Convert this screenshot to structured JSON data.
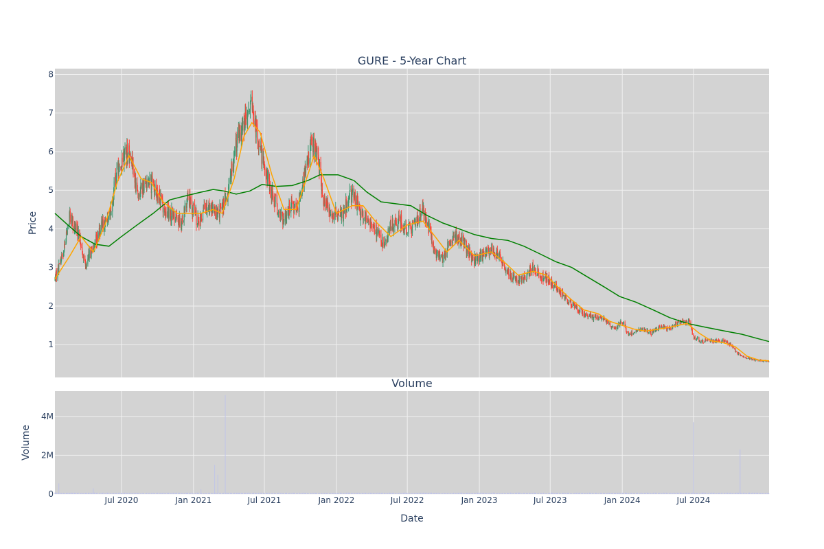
{
  "chart_data": {
    "type": "candlestick",
    "title": "GURE - 5-Year Chart",
    "volume_title": "Volume",
    "xlabel": "Date",
    "ylabel_price": "Price",
    "ylabel_volume": "Volume",
    "x_ticks": [
      "Jul 2020",
      "Jan 2021",
      "Jul 2021",
      "Jan 2022",
      "Jul 2022",
      "Jan 2023",
      "Jul 2023",
      "Jan 2024",
      "Jul 2024"
    ],
    "price_ticks": [
      "1",
      "2",
      "3",
      "4",
      "5",
      "6",
      "7",
      "8"
    ],
    "volume_ticks": [
      "0",
      "2M",
      "4M"
    ],
    "price_range": [
      0.15,
      8.15
    ],
    "volume_range": [
      0,
      5300000
    ],
    "date_range": [
      "2020-01-13",
      "2025-01-10"
    ],
    "price_keypoints": [
      [
        "2020-01-13",
        2.7
      ],
      [
        "2020-02-01",
        3.3
      ],
      [
        "2020-02-20",
        4.3
      ],
      [
        "2020-03-12",
        3.9
      ],
      [
        "2020-04-01",
        3.1
      ],
      [
        "2020-04-22",
        3.6
      ],
      [
        "2020-05-10",
        4.0
      ],
      [
        "2020-06-01",
        4.4
      ],
      [
        "2020-06-15",
        5.3
      ],
      [
        "2020-07-10",
        6.0
      ],
      [
        "2020-07-25",
        5.9
      ],
      [
        "2020-08-10",
        4.9
      ],
      [
        "2020-09-01",
        5.2
      ],
      [
        "2020-09-20",
        5.1
      ],
      [
        "2020-10-15",
        4.6
      ],
      [
        "2020-11-10",
        4.3
      ],
      [
        "2020-12-01",
        4.2
      ],
      [
        "2020-12-20",
        4.8
      ],
      [
        "2021-01-15",
        4.1
      ],
      [
        "2021-02-01",
        4.6
      ],
      [
        "2021-02-15",
        4.5
      ],
      [
        "2021-03-01",
        4.4
      ],
      [
        "2021-03-15",
        4.5
      ],
      [
        "2021-04-01",
        5.0
      ],
      [
        "2021-04-15",
        6.0
      ],
      [
        "2021-05-01",
        6.5
      ],
      [
        "2021-05-15",
        6.9
      ],
      [
        "2021-05-28",
        7.2
      ],
      [
        "2021-06-10",
        6.6
      ],
      [
        "2021-06-25",
        5.9
      ],
      [
        "2021-07-15",
        5.1
      ],
      [
        "2021-08-05",
        4.5
      ],
      [
        "2021-08-20",
        4.2
      ],
      [
        "2021-09-05",
        4.6
      ],
      [
        "2021-09-25",
        4.5
      ],
      [
        "2021-10-15",
        5.5
      ],
      [
        "2021-10-30",
        6.3
      ],
      [
        "2021-11-15",
        5.8
      ],
      [
        "2021-12-01",
        4.7
      ],
      [
        "2021-12-20",
        4.4
      ],
      [
        "2022-01-15",
        4.3
      ],
      [
        "2022-02-01",
        4.8
      ],
      [
        "2022-02-15",
        4.9
      ],
      [
        "2022-03-01",
        4.4
      ],
      [
        "2022-03-20",
        4.3
      ],
      [
        "2022-04-10",
        4.0
      ],
      [
        "2022-05-01",
        3.6
      ],
      [
        "2022-05-20",
        4.1
      ],
      [
        "2022-06-15",
        4.2
      ],
      [
        "2022-07-01",
        4.0
      ],
      [
        "2022-07-20",
        4.1
      ],
      [
        "2022-08-10",
        4.5
      ],
      [
        "2022-08-25",
        4.0
      ],
      [
        "2022-09-10",
        3.4
      ],
      [
        "2022-09-30",
        3.2
      ],
      [
        "2022-10-20",
        3.7
      ],
      [
        "2022-11-05",
        3.8
      ],
      [
        "2022-11-25",
        3.6
      ],
      [
        "2022-12-15",
        3.2
      ],
      [
        "2023-01-10",
        3.3
      ],
      [
        "2023-02-01",
        3.5
      ],
      [
        "2023-02-20",
        3.3
      ],
      [
        "2023-03-10",
        2.9
      ],
      [
        "2023-04-01",
        2.7
      ],
      [
        "2023-04-25",
        2.7
      ],
      [
        "2023-05-15",
        3.0
      ],
      [
        "2023-06-05",
        2.8
      ],
      [
        "2023-06-25",
        2.7
      ],
      [
        "2023-07-15",
        2.5
      ],
      [
        "2023-08-10",
        2.2
      ],
      [
        "2023-09-01",
        2.0
      ],
      [
        "2023-09-25",
        1.8
      ],
      [
        "2023-10-20",
        1.7
      ],
      [
        "2023-11-15",
        1.7
      ],
      [
        "2023-12-10",
        1.4
      ],
      [
        "2024-01-01",
        1.6
      ],
      [
        "2024-01-15",
        1.3
      ],
      [
        "2024-02-01",
        1.3
      ],
      [
        "2024-02-20",
        1.4
      ],
      [
        "2024-03-15",
        1.3
      ],
      [
        "2024-04-10",
        1.5
      ],
      [
        "2024-05-01",
        1.4
      ],
      [
        "2024-05-25",
        1.6
      ],
      [
        "2024-06-20",
        1.6
      ],
      [
        "2024-07-01",
        1.2
      ],
      [
        "2024-07-20",
        1.1
      ],
      [
        "2024-08-15",
        1.1
      ],
      [
        "2024-09-10",
        1.1
      ],
      [
        "2024-10-05",
        1.0
      ],
      [
        "2024-10-25",
        0.75
      ],
      [
        "2024-11-15",
        0.65
      ],
      [
        "2024-12-10",
        0.6
      ],
      [
        "2025-01-10",
        0.55
      ]
    ],
    "sma_fast_keypoints": [
      [
        "2020-01-13",
        2.7
      ],
      [
        "2020-02-20",
        3.3
      ],
      [
        "2020-03-20",
        3.8
      ],
      [
        "2020-04-20",
        3.4
      ],
      [
        "2020-05-20",
        4.1
      ],
      [
        "2020-06-20",
        5.2
      ],
      [
        "2020-07-20",
        5.9
      ],
      [
        "2020-08-20",
        5.3
      ],
      [
        "2020-09-15",
        5.2
      ],
      [
        "2020-10-15",
        4.7
      ],
      [
        "2020-11-20",
        4.4
      ],
      [
        "2020-12-20",
        4.4
      ],
      [
        "2021-01-20",
        4.4
      ],
      [
        "2021-02-20",
        4.5
      ],
      [
        "2021-03-15",
        4.4
      ],
      [
        "2021-04-15",
        5.3
      ],
      [
        "2021-05-10",
        6.4
      ],
      [
        "2021-05-30",
        6.75
      ],
      [
        "2021-06-20",
        6.5
      ],
      [
        "2021-07-20",
        5.4
      ],
      [
        "2021-08-20",
        4.5
      ],
      [
        "2021-09-20",
        4.5
      ],
      [
        "2021-10-20",
        5.4
      ],
      [
        "2021-11-05",
        5.9
      ],
      [
        "2021-11-30",
        5.3
      ],
      [
        "2022-01-01",
        4.4
      ],
      [
        "2022-02-10",
        4.6
      ],
      [
        "2022-03-10",
        4.6
      ],
      [
        "2022-04-10",
        4.2
      ],
      [
        "2022-05-20",
        3.8
      ],
      [
        "2022-07-01",
        4.1
      ],
      [
        "2022-08-10",
        4.2
      ],
      [
        "2022-09-10",
        3.8
      ],
      [
        "2022-10-10",
        3.4
      ],
      [
        "2022-11-10",
        3.7
      ],
      [
        "2022-12-20",
        3.3
      ],
      [
        "2023-02-01",
        3.4
      ],
      [
        "2023-03-10",
        3.1
      ],
      [
        "2023-04-10",
        2.8
      ],
      [
        "2023-05-20",
        2.9
      ],
      [
        "2023-06-20",
        2.8
      ],
      [
        "2023-07-20",
        2.5
      ],
      [
        "2023-08-20",
        2.2
      ],
      [
        "2023-09-25",
        1.9
      ],
      [
        "2023-11-01",
        1.8
      ],
      [
        "2023-12-01",
        1.6
      ],
      [
        "2024-01-01",
        1.5
      ],
      [
        "2024-02-01",
        1.4
      ],
      [
        "2024-03-01",
        1.35
      ],
      [
        "2024-04-01",
        1.4
      ],
      [
        "2024-05-01",
        1.45
      ],
      [
        "2024-06-15",
        1.55
      ],
      [
        "2024-07-15",
        1.3
      ],
      [
        "2024-08-15",
        1.1
      ],
      [
        "2024-09-15",
        1.05
      ],
      [
        "2024-10-15",
        0.95
      ],
      [
        "2024-11-15",
        0.7
      ],
      [
        "2024-12-15",
        0.6
      ],
      [
        "2025-01-10",
        0.58
      ]
    ],
    "sma_slow_keypoints": [
      [
        "2020-01-13",
        4.4
      ],
      [
        "2020-02-15",
        4.1
      ],
      [
        "2020-03-20",
        3.8
      ],
      [
        "2020-04-25",
        3.6
      ],
      [
        "2020-05-30",
        3.55
      ],
      [
        "2020-07-01",
        3.8
      ],
      [
        "2020-08-10",
        4.1
      ],
      [
        "2020-09-20",
        4.4
      ],
      [
        "2020-11-01",
        4.75
      ],
      [
        "2020-12-10",
        4.85
      ],
      [
        "2021-01-20",
        4.95
      ],
      [
        "2021-02-20",
        5.02
      ],
      [
        "2021-03-20",
        4.98
      ],
      [
        "2021-04-20",
        4.9
      ],
      [
        "2021-05-25",
        4.98
      ],
      [
        "2021-06-25",
        5.15
      ],
      [
        "2021-08-01",
        5.1
      ],
      [
        "2021-09-10",
        5.12
      ],
      [
        "2021-10-20",
        5.25
      ],
      [
        "2021-11-20",
        5.4
      ],
      [
        "2022-01-05",
        5.4
      ],
      [
        "2022-02-15",
        5.25
      ],
      [
        "2022-03-20",
        4.95
      ],
      [
        "2022-04-25",
        4.7
      ],
      [
        "2022-06-01",
        4.65
      ],
      [
        "2022-07-10",
        4.6
      ],
      [
        "2022-08-20",
        4.35
      ],
      [
        "2022-09-30",
        4.15
      ],
      [
        "2022-11-10",
        4.0
      ],
      [
        "2022-12-20",
        3.85
      ],
      [
        "2023-02-01",
        3.75
      ],
      [
        "2023-03-15",
        3.7
      ],
      [
        "2023-04-25",
        3.55
      ],
      [
        "2023-06-05",
        3.35
      ],
      [
        "2023-07-15",
        3.15
      ],
      [
        "2023-08-25",
        3.0
      ],
      [
        "2023-10-05",
        2.75
      ],
      [
        "2023-11-15",
        2.5
      ],
      [
        "2023-12-25",
        2.25
      ],
      [
        "2024-02-05",
        2.1
      ],
      [
        "2024-03-20",
        1.9
      ],
      [
        "2024-05-01",
        1.7
      ],
      [
        "2024-06-15",
        1.55
      ],
      [
        "2024-08-01",
        1.45
      ],
      [
        "2024-09-20",
        1.35
      ],
      [
        "2024-11-01",
        1.27
      ],
      [
        "2024-12-15",
        1.15
      ],
      [
        "2025-01-10",
        1.08
      ]
    ],
    "volume_spikes": [
      [
        "2020-01-23",
        550000
      ],
      [
        "2020-04-20",
        300000
      ],
      [
        "2021-01-20",
        250000
      ],
      [
        "2021-02-24",
        1500000
      ],
      [
        "2021-03-04",
        1000000
      ],
      [
        "2021-03-23",
        5100000
      ],
      [
        "2024-07-01",
        3700000
      ],
      [
        "2024-10-28",
        2300000
      ]
    ],
    "colors": {
      "increasing": "#3d9970",
      "decreasing": "#ff4136",
      "sma_fast": "orange",
      "sma_slow": "green",
      "volume": "#c0c4e8",
      "plot_bg": "#d3d3d3",
      "grid": "#f0f0f0"
    }
  }
}
